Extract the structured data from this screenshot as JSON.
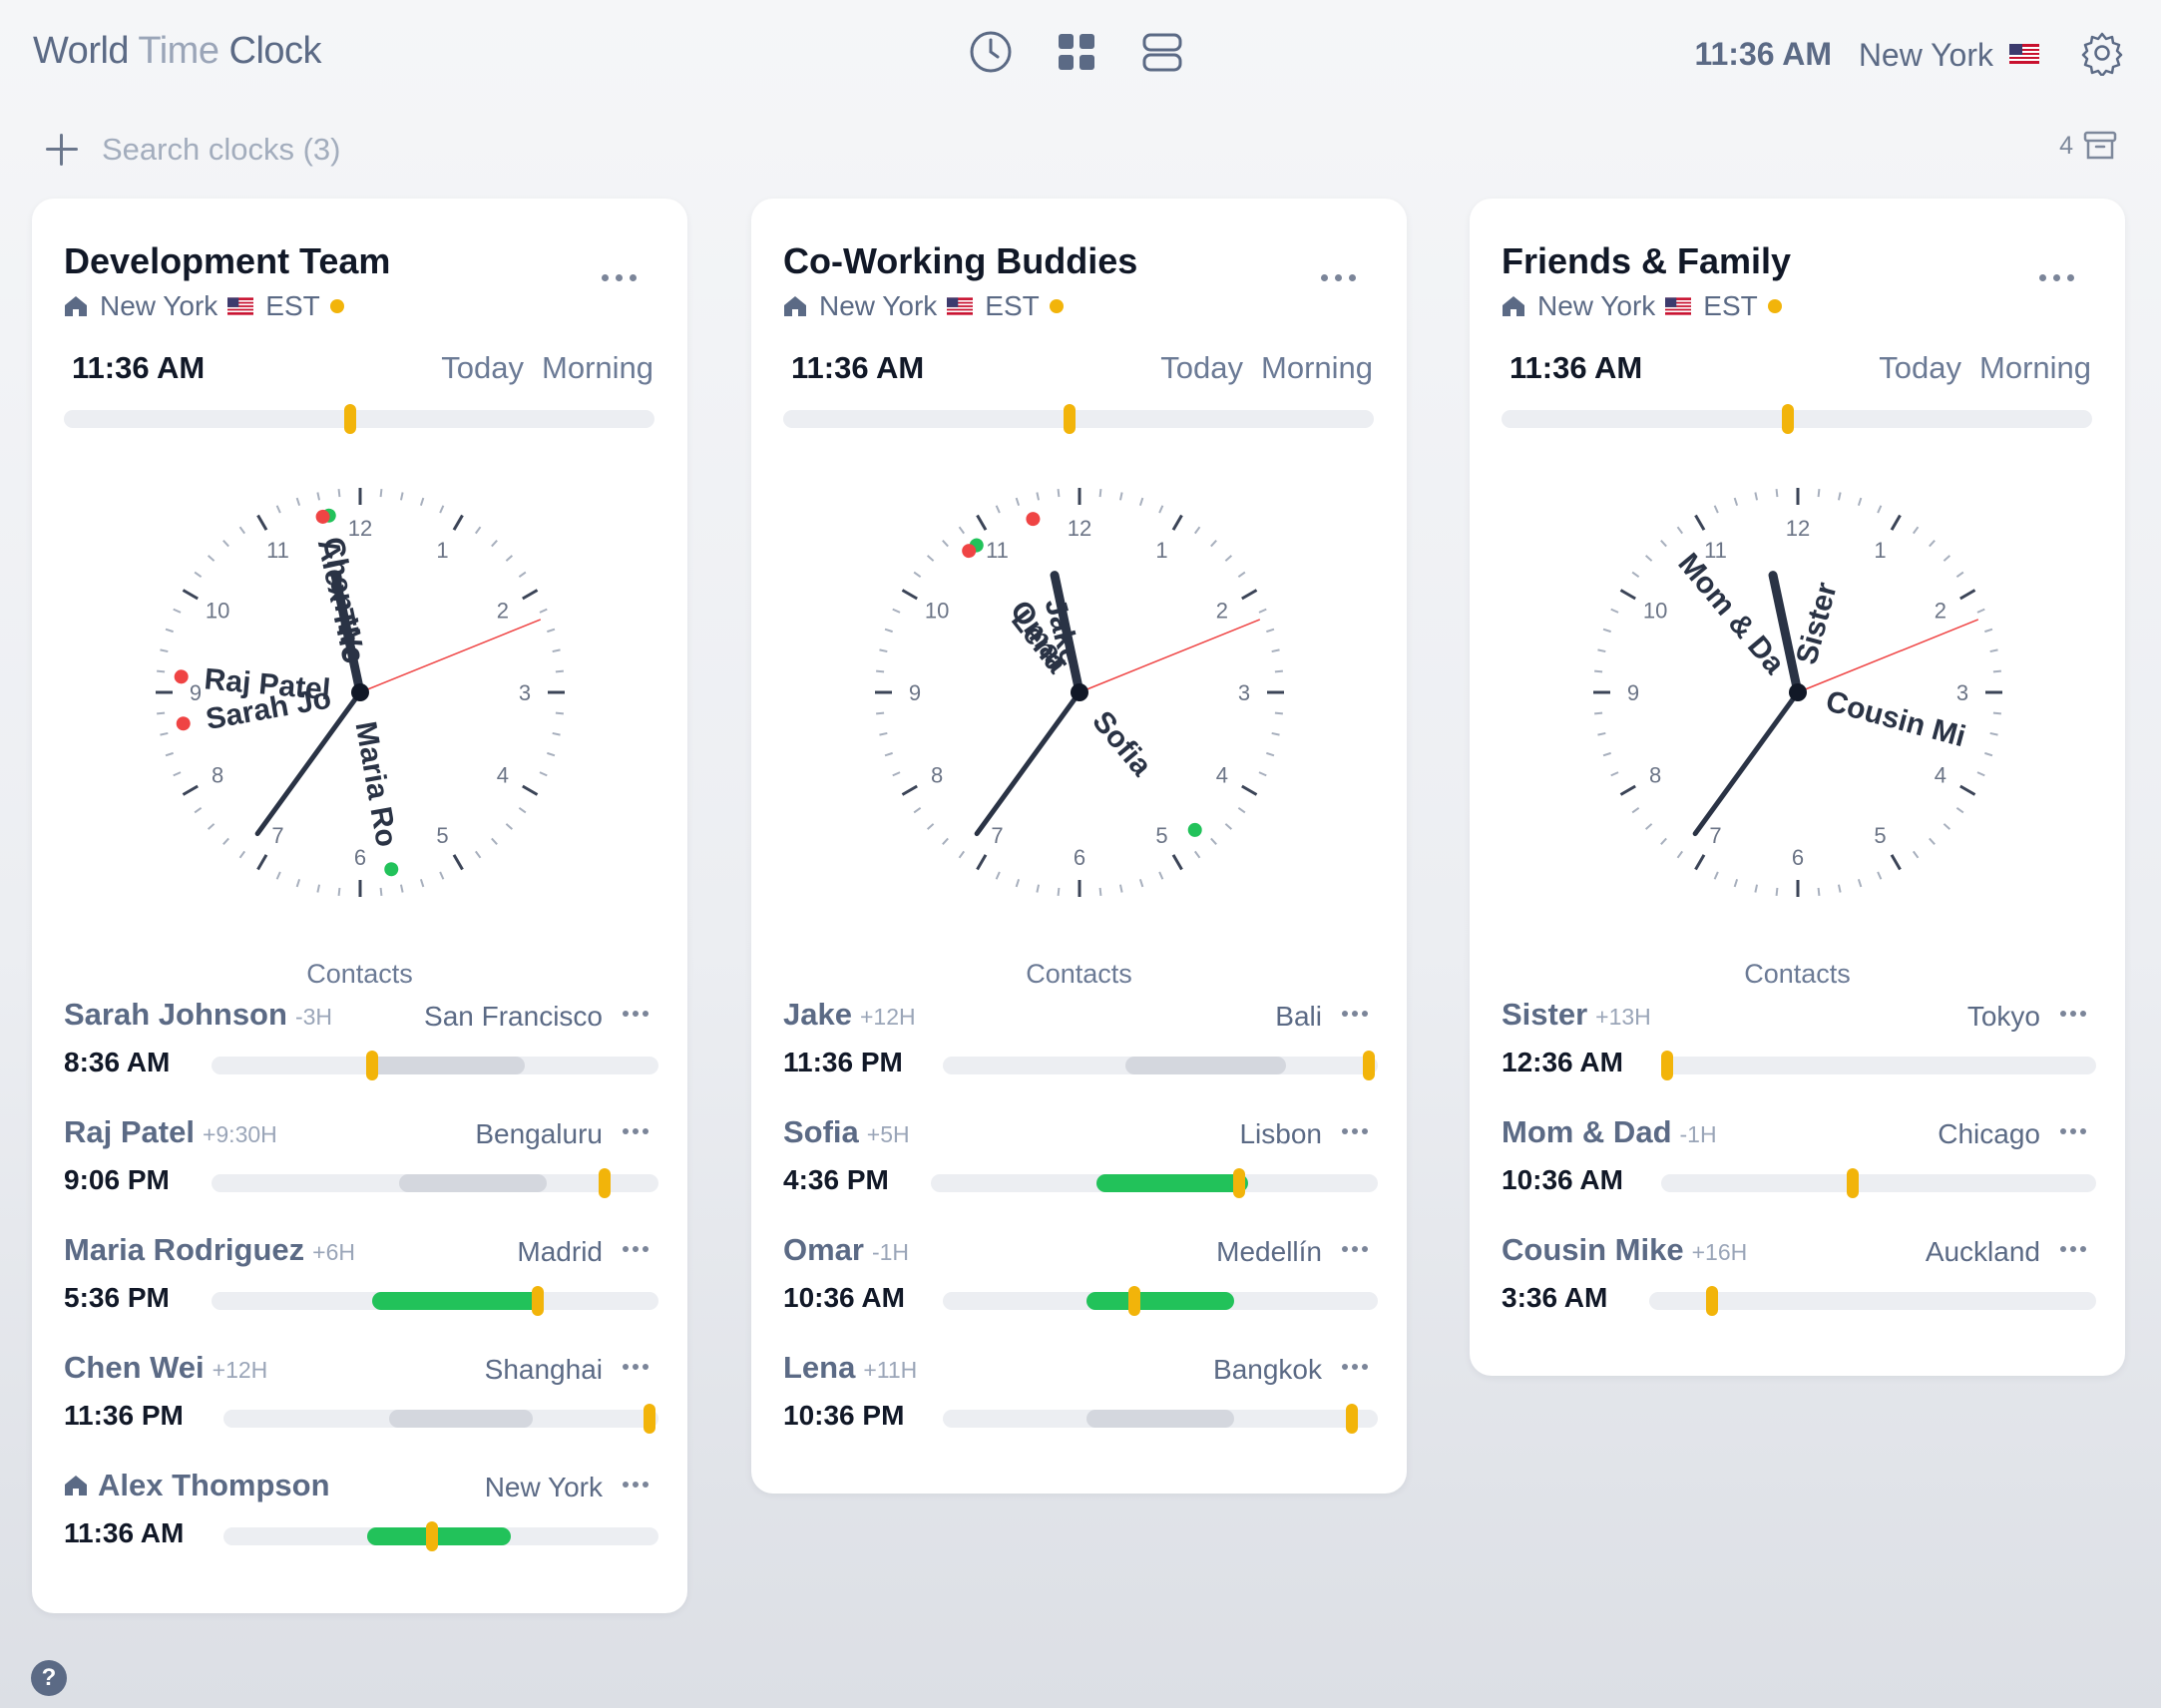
{
  "app": {
    "title_part1": "World",
    "title_part2": "Time",
    "title_part3": "Clock",
    "current_time": "11:36 AM",
    "current_city": "New York",
    "current_flag": "🇺🇸",
    "views": [
      "clock-view-icon",
      "grid-view-icon",
      "list-view-icon"
    ]
  },
  "search": {
    "placeholder": "Search clocks (3)",
    "value": ""
  },
  "archive": {
    "count": "4"
  },
  "help": {
    "label": "?"
  },
  "colors": {
    "accent": "#f2b40a",
    "green": "#22c25a",
    "red": "#ef4444",
    "text_muted": "#5b6a85"
  },
  "cards": [
    {
      "title": "Development Team",
      "home_city": "New York",
      "flag": "🇺🇸",
      "tz": "EST",
      "time": "11:36 AM",
      "day": "Today",
      "period": "Morning",
      "slider": 0.485,
      "contacts_label": "Contacts",
      "clock_names": [
        {
          "text": "Chen We",
          "angle": -10,
          "dot": "green"
        },
        {
          "text": "Alex Tho",
          "angle": -12,
          "dot": "red"
        },
        {
          "text": "Raj Patel",
          "angle": 275,
          "dot": "red"
        },
        {
          "text": "Sarah Jo",
          "angle": 260,
          "dot": "red"
        },
        {
          "text": "Maria Ro",
          "angle": 170,
          "dot": "green"
        }
      ],
      "contacts": [
        {
          "name": "Sarah Johnson",
          "offset": "-3H",
          "city": "San Francisco",
          "time": "8:36 AM",
          "home": false,
          "band": [
            0.35,
            0.7
          ],
          "band_color": "gray",
          "knob": 0.36
        },
        {
          "name": "Raj Patel",
          "offset": "+9:30H",
          "city": "Bengaluru",
          "time": "9:06 PM",
          "home": false,
          "band": [
            0.42,
            0.75
          ],
          "band_color": "gray",
          "knob": 0.88
        },
        {
          "name": "Maria Rodriguez",
          "offset": "+6H",
          "city": "Madrid",
          "time": "5:36 PM",
          "home": false,
          "band": [
            0.36,
            0.74
          ],
          "band_color": "green",
          "knob": 0.73
        },
        {
          "name": "Chen Wei",
          "offset": "+12H",
          "city": "Shanghai",
          "time": "11:36 PM",
          "home": false,
          "band": [
            0.38,
            0.71
          ],
          "band_color": "gray",
          "knob": 0.98
        },
        {
          "name": "Alex Thompson",
          "offset": "",
          "city": "New York",
          "time": "11:36 AM",
          "home": true,
          "band": [
            0.33,
            0.66
          ],
          "band_color": "green",
          "knob": 0.48
        }
      ]
    },
    {
      "title": "Co-Working Buddies",
      "home_city": "New York",
      "flag": "🇺🇸",
      "tz": "EST",
      "time": "11:36 AM",
      "day": "Today",
      "period": "Morning",
      "slider": 0.485,
      "contacts_label": "Contacts",
      "clock_names": [
        {
          "text": "Jake",
          "angle": -15,
          "dot": "red"
        },
        {
          "text": "Omar",
          "angle": -35,
          "dot": "green"
        },
        {
          "text": "Lena",
          "angle": -38,
          "dot": "red"
        },
        {
          "text": "Sofia",
          "angle": 140,
          "dot": "green"
        }
      ],
      "contacts": [
        {
          "name": "Jake",
          "offset": "+12H",
          "city": "Bali",
          "time": "11:36 PM",
          "home": false,
          "band": [
            0.42,
            0.79
          ],
          "band_color": "gray",
          "knob": 0.98
        },
        {
          "name": "Sofia",
          "offset": "+5H",
          "city": "Lisbon",
          "time": "4:36 PM",
          "home": false,
          "band": [
            0.37,
            0.71
          ],
          "band_color": "green",
          "knob": 0.69
        },
        {
          "name": "Omar",
          "offset": "-1H",
          "city": "Medellín",
          "time": "10:36 AM",
          "home": false,
          "band": [
            0.33,
            0.67
          ],
          "band_color": "green",
          "knob": 0.44
        },
        {
          "name": "Lena",
          "offset": "+11H",
          "city": "Bangkok",
          "time": "10:36 PM",
          "home": false,
          "band": [
            0.33,
            0.67
          ],
          "band_color": "gray",
          "knob": 0.94
        }
      ]
    },
    {
      "title": "Friends & Family",
      "home_city": "New York",
      "flag": "🇺🇸",
      "tz": "EST",
      "time": "11:36 AM",
      "day": "Today",
      "period": "Morning",
      "slider": 0.485,
      "contacts_label": "Contacts",
      "clock_names": [
        {
          "text": "Mom & Da",
          "angle": -40,
          "dot": ""
        },
        {
          "text": "Sister",
          "angle": 15,
          "dot": ""
        },
        {
          "text": "Cousin Mi",
          "angle": 105,
          "dot": ""
        }
      ],
      "contacts": [
        {
          "name": "Sister",
          "offset": "+13H",
          "city": "Tokyo",
          "time": "12:36 AM",
          "home": false,
          "band": null,
          "band_color": "",
          "knob": 0.0
        },
        {
          "name": "Mom & Dad",
          "offset": "-1H",
          "city": "Chicago",
          "time": "10:36 AM",
          "home": false,
          "band": null,
          "band_color": "",
          "knob": 0.44
        },
        {
          "name": "Cousin Mike",
          "offset": "+16H",
          "city": "Auckland",
          "time": "3:36 AM",
          "home": false,
          "band": null,
          "band_color": "",
          "knob": 0.14
        }
      ]
    }
  ]
}
